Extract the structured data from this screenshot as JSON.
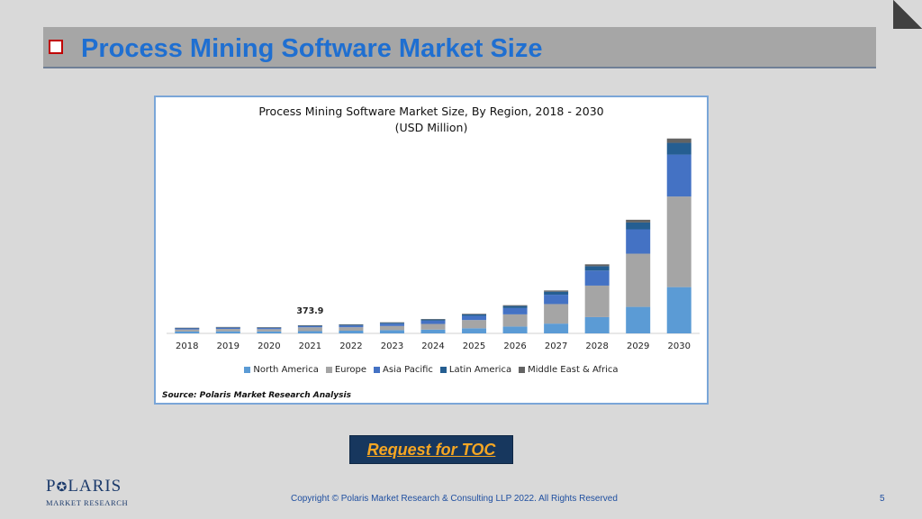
{
  "slide": {
    "title": "Process Mining Software Market Size",
    "toc_button_label": "Request for TOC",
    "copyright": "Copyright © Polaris Market Research & Consulting LLP 2022. All Rights Reserved",
    "page_number": "5",
    "logo": {
      "name_pre": "P",
      "name_post": "LARIS",
      "sub": "MARKET RESEARCH"
    },
    "colors": {
      "title": "#1f6fd1",
      "title_bar": "#a6a6a6",
      "toc_bg": "#17375e",
      "toc_text": "#f5a623"
    }
  },
  "chart_data": {
    "type": "bar",
    "stacked": true,
    "title": "Process Mining Software Market Size, By Region, 2018 - 2030",
    "subtitle": "(USD Million)",
    "categories": [
      "2018",
      "2019",
      "2020",
      "2021",
      "2022",
      "2023",
      "2024",
      "2025",
      "2026",
      "2027",
      "2028",
      "2029",
      "2030"
    ],
    "series": [
      {
        "name": "North America",
        "color": "#5b9bd5",
        "values": [
          85,
          95,
          90,
          105,
          125,
          150,
          175,
          235,
          315,
          450,
          750,
          1220,
          2130
        ]
      },
      {
        "name": "Europe",
        "color": "#a5a5a5",
        "values": [
          95,
          110,
          105,
          175,
          160,
          190,
          260,
          380,
          560,
          900,
          1450,
          2450,
          4170
        ]
      },
      {
        "name": "Asia Pacific",
        "color": "#4472c4",
        "values": [
          50,
          55,
          52,
          55,
          80,
          110,
          150,
          190,
          290,
          430,
          690,
          1120,
          1930
        ]
      },
      {
        "name": "Latin America",
        "color": "#255e91",
        "values": [
          20,
          24,
          23,
          28,
          35,
          42,
          55,
          70,
          95,
          140,
          205,
          315,
          540
        ]
      },
      {
        "name": "Middle East & Africa",
        "color": "#636363",
        "values": [
          10,
          12,
          11,
          11,
          14,
          18,
          22,
          28,
          38,
          55,
          85,
          125,
          200
        ]
      }
    ],
    "annotations": [
      {
        "category": "2021",
        "text": "373.9"
      }
    ],
    "ylim": [
      0,
      9000
    ],
    "y_axis_visible": false,
    "grid": false,
    "legend": "bottom",
    "source": "Source: Polaris  Market Research Analysis"
  }
}
